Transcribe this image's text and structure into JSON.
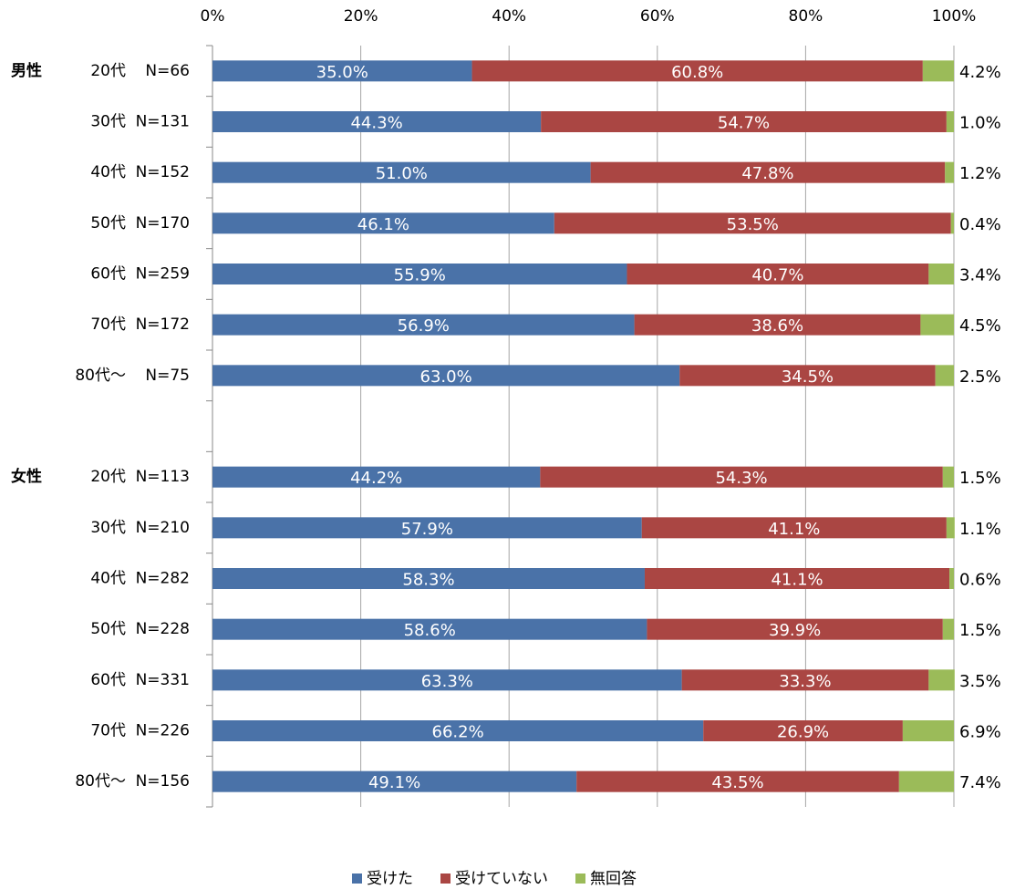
{
  "chart_data": {
    "type": "bar",
    "orientation": "horizontal",
    "stacked": true,
    "row_groups": [
      "男性",
      null,
      null,
      null,
      null,
      null,
      null,
      null,
      "女性",
      null,
      null,
      null,
      null,
      null,
      null
    ],
    "categories": [
      "20代",
      "30代",
      "40代",
      "50代",
      "60代",
      "70代",
      "80代～",
      null,
      "20代",
      "30代",
      "40代",
      "50代",
      "60代",
      "70代",
      "80代～"
    ],
    "sample_sizes": [
      "N=66",
      "N=131",
      "N=152",
      "N=170",
      "N=259",
      "N=172",
      "N=75",
      null,
      "N=113",
      "N=210",
      "N=282",
      "N=228",
      "N=331",
      "N=226",
      "N=156"
    ],
    "series": [
      {
        "name": "受けた",
        "color": "#4a72a8",
        "values": [
          35.0,
          44.3,
          51.0,
          46.1,
          55.9,
          56.9,
          63.0,
          null,
          44.2,
          57.9,
          58.3,
          58.6,
          63.3,
          66.2,
          49.1
        ],
        "value_labels": [
          "35.0%",
          "44.3%",
          "51.0%",
          "46.1%",
          "55.9%",
          "56.9%",
          "63.0%",
          null,
          "44.2%",
          "57.9%",
          "58.3%",
          "58.6%",
          "63.3%",
          "66.2%",
          "49.1%"
        ]
      },
      {
        "name": "受けていない",
        "color": "#aa4643",
        "values": [
          60.8,
          54.7,
          47.8,
          53.5,
          40.7,
          38.6,
          34.5,
          null,
          54.3,
          41.1,
          41.1,
          39.9,
          33.3,
          26.9,
          43.5
        ],
        "value_labels": [
          "60.8%",
          "54.7%",
          "47.8%",
          "53.5%",
          "40.7%",
          "38.6%",
          "34.5%",
          null,
          "54.3%",
          "41.1%",
          "41.1%",
          "39.9%",
          "33.3%",
          "26.9%",
          "43.5%"
        ]
      },
      {
        "name": "無回答",
        "color": "#9bbb59",
        "values": [
          4.2,
          1.0,
          1.2,
          0.4,
          3.4,
          4.5,
          2.5,
          null,
          1.5,
          1.1,
          0.6,
          1.5,
          3.5,
          6.9,
          7.4
        ],
        "value_labels": [
          "4.2%",
          "1.0%",
          "1.2%",
          "0.4%",
          "3.4%",
          "4.5%",
          "2.5%",
          null,
          "1.5%",
          "1.1%",
          "0.6%",
          "1.5%",
          "3.5%",
          "6.9%",
          "7.4%"
        ]
      }
    ],
    "xlim": [
      0,
      100
    ],
    "xticks": [
      {
        "value": 0,
        "label": "0%"
      },
      {
        "value": 20,
        "label": "20%"
      },
      {
        "value": 40,
        "label": "40%"
      },
      {
        "value": 60,
        "label": "60%"
      },
      {
        "value": 80,
        "label": "80%"
      },
      {
        "value": 100,
        "label": "100%"
      }
    ],
    "grid": true,
    "legend": "bottom"
  }
}
